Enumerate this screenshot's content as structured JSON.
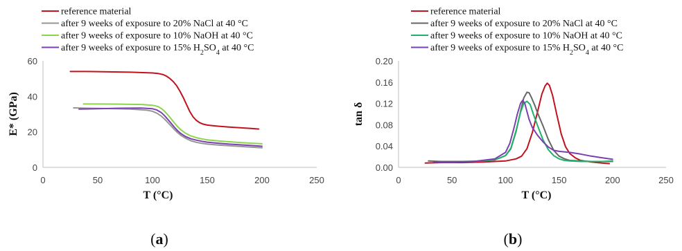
{
  "chart_data": [
    {
      "type": "line",
      "panel_label_prefix": "(",
      "panel_label_letter": "a",
      "panel_label_suffix": ")",
      "xlabel": "T (°C)",
      "ylabel": "E* (GPa)",
      "xlim": [
        0,
        250
      ],
      "ylim": [
        0,
        60
      ],
      "xticks": [
        "0",
        "50",
        "100",
        "150",
        "200",
        "250"
      ],
      "yticks": [
        "0",
        "20",
        "40",
        "60"
      ],
      "grid": false,
      "legend_position": "top-left",
      "series": [
        {
          "name": "reference material",
          "color": "#c0121f",
          "x": [
            25,
            40,
            60,
            80,
            100,
            105,
            110,
            113,
            116,
            119,
            122,
            125,
            128,
            131,
            134,
            137,
            140,
            143,
            146,
            150,
            155,
            160,
            170,
            180,
            190,
            197
          ],
          "y": [
            54,
            54,
            53.8,
            53.6,
            53.2,
            52.9,
            52.2,
            51.3,
            50,
            48.3,
            46,
            43,
            39.5,
            35.5,
            31.5,
            28.5,
            26.5,
            25.2,
            24.4,
            23.8,
            23.5,
            23.2,
            22.7,
            22.3,
            21.9,
            21.6
          ]
        },
        {
          "name": "after 9 weeks of exposure to 20% NaCl at 40 °C",
          "color": "#959595",
          "x": [
            28,
            40,
            60,
            80,
            95,
            100,
            104,
            108,
            111,
            114,
            117,
            120,
            123,
            126,
            130,
            135,
            140,
            145,
            150,
            160,
            170,
            180,
            190,
            200
          ],
          "y": [
            33.5,
            33.3,
            33.1,
            32.8,
            32.2,
            31.6,
            30.5,
            28.9,
            27.2,
            25.3,
            23.3,
            21.3,
            19.5,
            18,
            16.5,
            15,
            14.1,
            13.5,
            13.1,
            12.6,
            12.2,
            11.8,
            11.4,
            11
          ]
        },
        {
          "name": "after 9 weeks of exposure to 10% NaOH at 40 °C",
          "color": "#8dd44b",
          "x": [
            37,
            50,
            70,
            90,
            100,
            105,
            108,
            111,
            114,
            117,
            120,
            123,
            126,
            130,
            135,
            140,
            145,
            150,
            160,
            170,
            180,
            190,
            200
          ],
          "y": [
            35.7,
            35.7,
            35.6,
            35.4,
            35,
            34.3,
            33.2,
            31.6,
            29.6,
            27.3,
            25,
            22.9,
            21.1,
            19.3,
            17.7,
            16.7,
            16,
            15.5,
            14.9,
            14.4,
            14,
            13.6,
            13.3
          ]
        },
        {
          "name": "after 9 weeks of exposure to 15% H2SO4 at 40 °C",
          "name_prefix": "after 9 weeks of exposure to 15% H",
          "name_subscript": "2",
          "name_middle": "SO",
          "name_subscript2": "4",
          "name_suffix": " at 40 °C",
          "color": "#7a3fb0",
          "x": [
            33,
            50,
            70,
            90,
            100,
            104,
            108,
            111,
            114,
            117,
            120,
            123,
            126,
            130,
            135,
            140,
            145,
            150,
            160,
            170,
            180,
            190,
            200
          ],
          "y": [
            32.8,
            33,
            33.3,
            33.4,
            33,
            32.3,
            30.9,
            29.1,
            27,
            24.8,
            22.6,
            20.6,
            19,
            17.4,
            16.1,
            15.3,
            14.7,
            14.2,
            13.6,
            13.1,
            12.7,
            12.3,
            11.9
          ]
        }
      ]
    },
    {
      "type": "line",
      "panel_label_prefix": "(",
      "panel_label_letter": "b",
      "panel_label_suffix": ")",
      "xlabel": "T (°C)",
      "ylabel": "tan δ",
      "xlim": [
        0,
        250
      ],
      "ylim": [
        0,
        0.2
      ],
      "xticks": [
        "0",
        "50",
        "100",
        "150",
        "200",
        "250"
      ],
      "yticks": [
        "0.00",
        "0.04",
        "0.08",
        "0.12",
        "0.16",
        "0.20"
      ],
      "grid": false,
      "legend_position": "top-left",
      "series": [
        {
          "name": "reference material",
          "color": "#c0121f",
          "x": [
            25,
            40,
            60,
            80,
            100,
            110,
            115,
            120,
            125,
            130,
            134,
            137,
            139,
            141,
            144,
            148,
            152,
            156,
            160,
            165,
            170,
            180,
            190,
            197
          ],
          "y": [
            0.008,
            0.009,
            0.009,
            0.01,
            0.012,
            0.016,
            0.021,
            0.035,
            0.065,
            0.105,
            0.138,
            0.153,
            0.158,
            0.154,
            0.135,
            0.098,
            0.063,
            0.039,
            0.026,
            0.018,
            0.013,
            0.01,
            0.008,
            0.007
          ]
        },
        {
          "name": "after 9 weeks of exposure to 20% NaCl at 40 °C",
          "color": "#666666",
          "x": [
            28,
            40,
            60,
            80,
            90,
            100,
            105,
            110,
            114,
            117,
            120,
            122,
            124,
            127,
            130,
            135,
            140,
            145,
            150,
            155,
            160,
            170,
            180,
            190,
            200
          ],
          "y": [
            0.012,
            0.011,
            0.011,
            0.012,
            0.014,
            0.022,
            0.035,
            0.068,
            0.105,
            0.13,
            0.141,
            0.14,
            0.132,
            0.118,
            0.102,
            0.078,
            0.052,
            0.032,
            0.021,
            0.016,
            0.013,
            0.012,
            0.011,
            0.011,
            0.011
          ]
        },
        {
          "name": "after 9 weeks of exposure to 10% NaOH at 40 °C",
          "color": "#1fb36a",
          "x": [
            37,
            50,
            70,
            90,
            100,
            105,
            110,
            114,
            117,
            120,
            123,
            126,
            130,
            135,
            140,
            145,
            150,
            155,
            160,
            170,
            180,
            190,
            200
          ],
          "y": [
            0.01,
            0.01,
            0.011,
            0.014,
            0.022,
            0.036,
            0.07,
            0.103,
            0.12,
            0.124,
            0.118,
            0.1,
            0.078,
            0.052,
            0.033,
            0.022,
            0.016,
            0.013,
            0.012,
            0.011,
            0.011,
            0.011,
            0.012
          ]
        },
        {
          "name": "after 9 weeks of exposure to 15% H2SO4 at 40 °C",
          "name_prefix": "after 9 weeks of exposure to 15% H",
          "name_subscript": "2",
          "name_middle": "SO",
          "name_subscript2": "4",
          "name_suffix": " at 40 °C",
          "color": "#7a3fb0",
          "x": [
            33,
            50,
            70,
            90,
            100,
            104,
            108,
            111,
            114,
            116,
            118,
            120,
            122,
            125,
            130,
            135,
            140,
            145,
            150,
            160,
            170,
            180,
            190,
            200
          ],
          "y": [
            0.01,
            0.01,
            0.011,
            0.016,
            0.028,
            0.045,
            0.075,
            0.1,
            0.12,
            0.126,
            0.12,
            0.105,
            0.09,
            0.075,
            0.06,
            0.048,
            0.038,
            0.032,
            0.03,
            0.028,
            0.025,
            0.021,
            0.018,
            0.015
          ]
        }
      ]
    }
  ]
}
